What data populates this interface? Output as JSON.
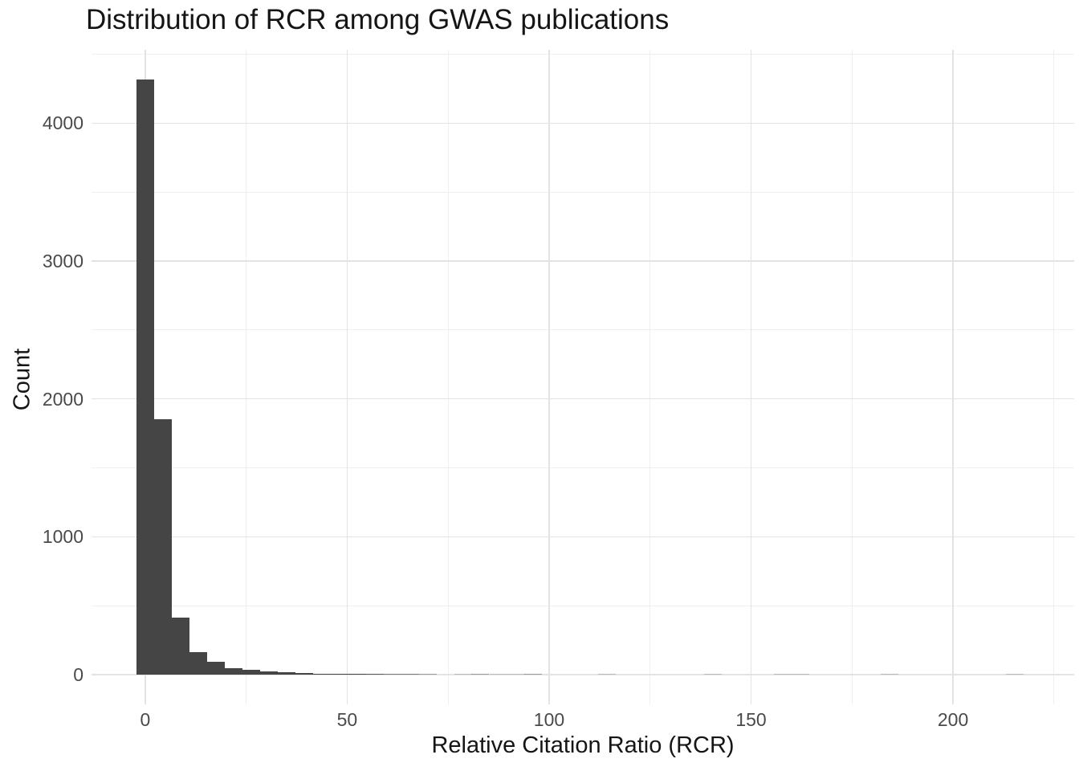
{
  "figure": {
    "background": "#ffffff"
  },
  "colors": {
    "bar_fill": "#454545",
    "grid_major": "#e3e3e3",
    "grid_minor": "#efefef",
    "tick_label": "#4a4a4a",
    "title_text": "#151515"
  },
  "chart_data": {
    "type": "bar",
    "subtype": "histogram",
    "title": "Distribution of RCR among GWAS publications",
    "xlabel": "Relative Citation Ratio (RCR)",
    "ylabel": "Count",
    "legend": "none",
    "grid": "major+minor",
    "xlim": [
      -13.3,
      230.0
    ],
    "ylim": [
      -215,
      4532
    ],
    "x_ticks": [
      0,
      50,
      100,
      150,
      200
    ],
    "x_tick_labels": [
      "0",
      "50",
      "100",
      "150",
      "200"
    ],
    "x_minor_ticks": [
      25,
      75,
      125,
      175,
      225
    ],
    "y_ticks": [
      0,
      1000,
      2000,
      3000,
      4000
    ],
    "y_tick_labels": [
      "0",
      "1000",
      "2000",
      "3000",
      "4000"
    ],
    "y_minor_ticks": [
      500,
      1500,
      2500,
      3500,
      4500
    ],
    "binwidth": 4.37,
    "bins": [
      {
        "x": 0,
        "n": 4315
      },
      {
        "x": 4.37,
        "n": 1852
      },
      {
        "x": 8.74,
        "n": 413
      },
      {
        "x": 13.11,
        "n": 165
      },
      {
        "x": 17.48,
        "n": 93
      },
      {
        "x": 21.85,
        "n": 50
      },
      {
        "x": 26.22,
        "n": 35
      },
      {
        "x": 30.59,
        "n": 23
      },
      {
        "x": 34.96,
        "n": 16
      },
      {
        "x": 39.33,
        "n": 12
      },
      {
        "x": 43.7,
        "n": 9
      },
      {
        "x": 48.07,
        "n": 7
      },
      {
        "x": 52.44,
        "n": 5
      },
      {
        "x": 56.81,
        "n": 4
      },
      {
        "x": 61.18,
        "n": 3
      },
      {
        "x": 65.55,
        "n": 3
      },
      {
        "x": 69.92,
        "n": 2
      },
      {
        "x": 78.7,
        "n": 1
      },
      {
        "x": 83.0,
        "n": 2
      },
      {
        "x": 87.4,
        "n": 1
      },
      {
        "x": 91.8,
        "n": 1
      },
      {
        "x": 96.1,
        "n": 2
      },
      {
        "x": 114.3,
        "n": 1
      },
      {
        "x": 140.5,
        "n": 1
      },
      {
        "x": 157.9,
        "n": 1
      },
      {
        "x": 162.3,
        "n": 1
      },
      {
        "x": 184.3,
        "n": 1
      },
      {
        "x": 215.3,
        "n": 1
      }
    ]
  }
}
